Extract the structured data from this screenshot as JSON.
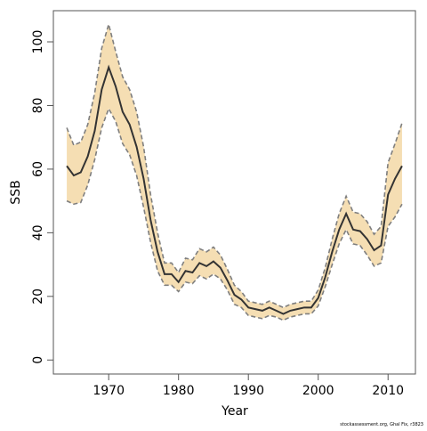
{
  "chart_data": {
    "type": "line",
    "x_label": "Year",
    "y_label": "SSB",
    "footnote": "stockassessment.org, Ghal Fix, r3823",
    "x": [
      1964,
      1965,
      1966,
      1967,
      1968,
      1969,
      1970,
      1971,
      1972,
      1973,
      1974,
      1975,
      1976,
      1977,
      1978,
      1979,
      1980,
      1981,
      1982,
      1983,
      1984,
      1985,
      1986,
      1987,
      1988,
      1989,
      1990,
      1991,
      1992,
      1993,
      1994,
      1995,
      1996,
      1997,
      1998,
      1999,
      2000,
      2001,
      2002,
      2003,
      2004,
      2005,
      2006,
      2007,
      2008,
      2009,
      2010,
      2011,
      2012
    ],
    "values": [
      61,
      58,
      59,
      64,
      72,
      85,
      92,
      86,
      78,
      74,
      67,
      57,
      44,
      34,
      27,
      27,
      24.5,
      28,
      27.5,
      30.5,
      29.5,
      31,
      29,
      25,
      20.5,
      19,
      16.5,
      16,
      15.5,
      16.5,
      15.5,
      14.5,
      15.5,
      16,
      16.5,
      16.5,
      19.5,
      26,
      34,
      41,
      46,
      41,
      40.5,
      38,
      34.5,
      36,
      52,
      57,
      61
    ],
    "upper": [
      73,
      67.5,
      68.5,
      74,
      84,
      98,
      105.5,
      97,
      89,
      85,
      78,
      67,
      52,
      40,
      30.5,
      30.5,
      27.5,
      32,
      31.5,
      35,
      34,
      35.5,
      33,
      28.5,
      23.5,
      21.5,
      18.5,
      18,
      17.5,
      18.5,
      17.5,
      16.5,
      17.5,
      18,
      18.5,
      18.5,
      22,
      29,
      38,
      46,
      51.5,
      46.5,
      46,
      43.5,
      39.5,
      42,
      62,
      68,
      74.5
    ],
    "lower": [
      50,
      49,
      49.5,
      55,
      63,
      73,
      79,
      75,
      68,
      64.5,
      58,
      48,
      37,
      28,
      23.5,
      23.5,
      21.5,
      24.5,
      24,
      26.5,
      25.5,
      27,
      25.5,
      22,
      17.5,
      16.5,
      14,
      13.5,
      13,
      14,
      13.5,
      12.5,
      13.5,
      14,
      14.5,
      14.5,
      17,
      23,
      30,
      36.5,
      41,
      36.5,
      36,
      33,
      29.5,
      30.5,
      42,
      45,
      49
    ],
    "color": "#333333",
    "band_color": "#f5deb3",
    "bound_color": "#7f7f7f",
    "xlim": [
      1962.08,
      2013.92
    ],
    "ylim": [
      -4.4,
      109.8
    ],
    "xticks": [
      1970,
      1980,
      1990,
      2000,
      2010
    ],
    "yticks": [
      0,
      20,
      40,
      60,
      80,
      100
    ]
  }
}
